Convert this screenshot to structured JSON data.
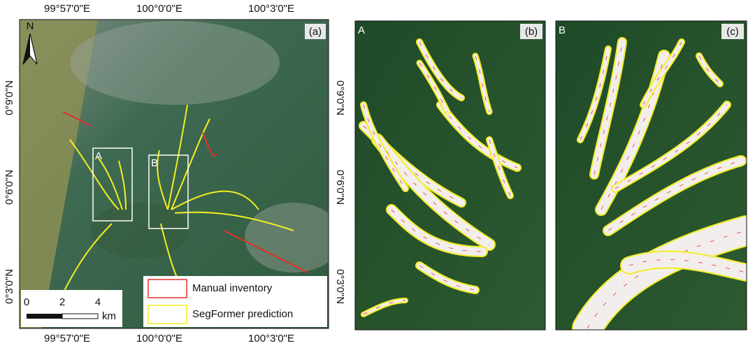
{
  "map": {
    "lon_labels": [
      "99°57'0\"E",
      "100°0'0\"E",
      "100°3'0\"E"
    ],
    "lat_labels": [
      "0°9'0\"N",
      "0°6'0\"N",
      "0°3'0\"N"
    ],
    "north": "N",
    "scale": {
      "ticks": [
        "0",
        "2",
        "4"
      ],
      "unit": "km"
    },
    "legend": [
      {
        "label": "Manual inventory",
        "color": "#e0302a"
      },
      {
        "label": "SegFormer prediction",
        "color": "#f2ee22"
      }
    ],
    "panels": [
      {
        "label": "(a)",
        "boxes": [
          "A",
          "B"
        ]
      },
      {
        "label": "(b)",
        "inset": "A"
      },
      {
        "label": "(c)",
        "inset": "B"
      }
    ]
  }
}
